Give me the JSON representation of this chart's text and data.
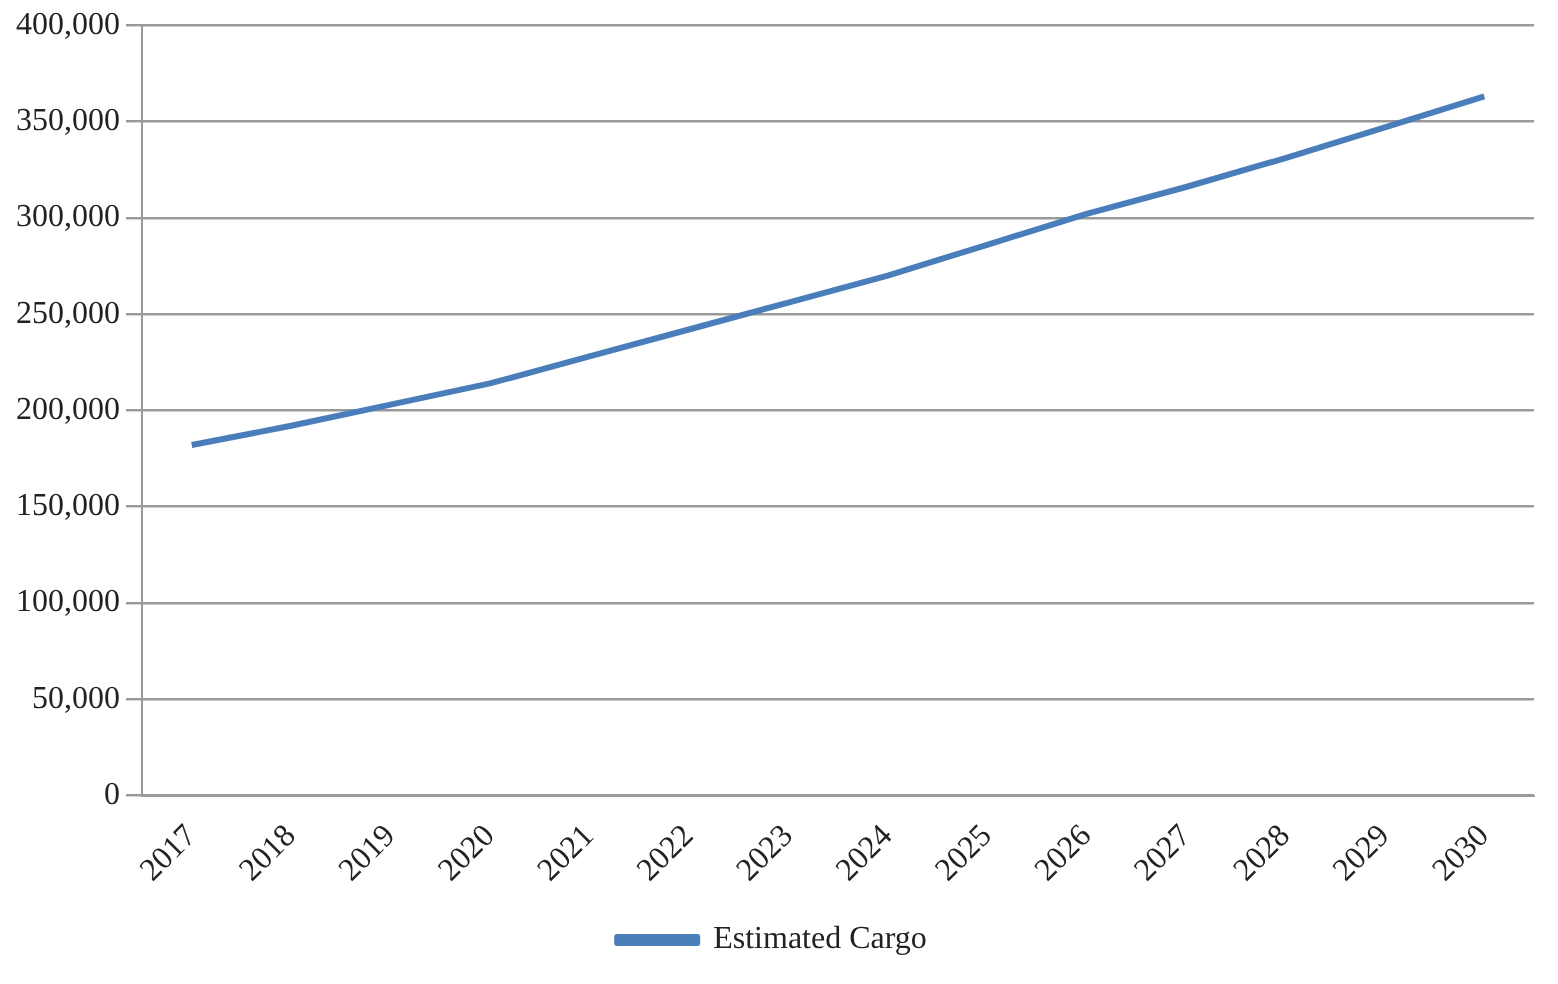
{
  "chart_data": {
    "type": "line",
    "categories": [
      "2017",
      "2018",
      "2019",
      "2020",
      "2021",
      "2022",
      "2023",
      "2024",
      "2025",
      "2026",
      "2027",
      "2028",
      "2029",
      "2030"
    ],
    "series": [
      {
        "name": "Estimated Cargo",
        "color": "#4a7ebb",
        "values": [
          182000,
          192000,
          203000,
          214000,
          228000,
          242000,
          256000,
          270000,
          286000,
          302000,
          316000,
          331000,
          347000,
          363000
        ]
      }
    ],
    "ylim": [
      0,
      400000
    ],
    "yticks": [
      0,
      {
        "value": 50000,
        "label": "50,000"
      },
      {
        "value": 100000,
        "label": "100,000"
      },
      {
        "value": 150000,
        "label": "150,000"
      },
      {
        "value": 200000,
        "label": "200,000"
      },
      {
        "value": 250000,
        "label": "250,000"
      },
      {
        "value": 300000,
        "label": "300,000"
      },
      {
        "value": 350000,
        "label": "350,000"
      },
      {
        "value": 400000,
        "label": "400,000"
      }
    ],
    "grid": "y",
    "legend": "bottom",
    "marker": "none",
    "line_style": "solid"
  }
}
